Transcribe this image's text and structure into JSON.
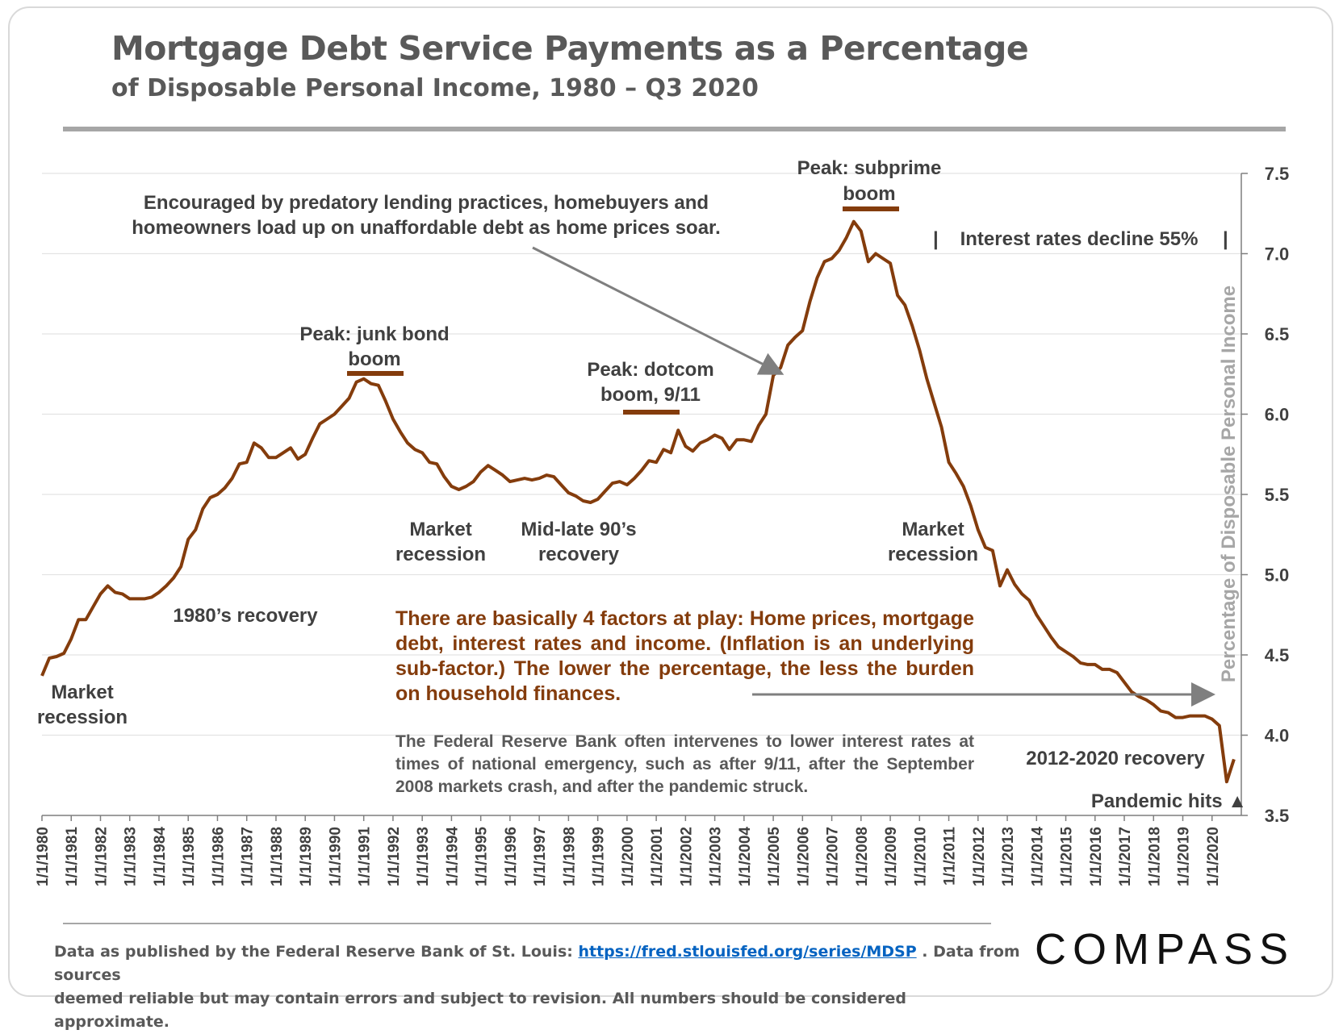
{
  "header": {
    "title": "Mortgage Debt Service Payments as a Percentage",
    "subtitle": "of Disposable Personal Income, 1980 – Q3 2020"
  },
  "chart_data": {
    "type": "line",
    "ylabel": "Percentage of Disposable Personal Income",
    "ylim": [
      3.5,
      7.5
    ],
    "yticks": [
      "3.5",
      "4.0",
      "4.5",
      "5.0",
      "5.5",
      "6.0",
      "6.5",
      "7.0",
      "7.5"
    ],
    "xticks": [
      "1/1/1980",
      "1/1/1981",
      "1/1/1982",
      "1/1/1983",
      "1/1/1984",
      "1/1/1985",
      "1/1/1986",
      "1/1/1987",
      "1/1/1988",
      "1/1/1989",
      "1/1/1990",
      "1/1/1991",
      "1/1/1992",
      "1/1/1993",
      "1/1/1994",
      "1/1/1995",
      "1/1/1996",
      "1/1/1997",
      "1/1/1998",
      "1/1/1999",
      "1/1/2000",
      "1/1/2001",
      "1/1/2002",
      "1/1/2003",
      "1/1/2004",
      "1/1/2005",
      "1/1/2006",
      "1/1/2007",
      "1/1/2008",
      "1/1/2009",
      "1/1/2010",
      "1/1/2011",
      "1/1/2012",
      "1/1/2013",
      "1/1/2014",
      "1/1/2015",
      "1/1/2016",
      "1/1/2017",
      "1/1/2018",
      "1/1/2019",
      "1/1/2020"
    ],
    "series_color": "#843c0c",
    "grid": true,
    "points": [
      [
        1980.0,
        4.37
      ],
      [
        1980.25,
        4.48
      ],
      [
        1980.5,
        4.49
      ],
      [
        1980.75,
        4.51
      ],
      [
        1981.0,
        4.6
      ],
      [
        1981.25,
        4.72
      ],
      [
        1981.5,
        4.72
      ],
      [
        1981.75,
        4.8
      ],
      [
        1982.0,
        4.88
      ],
      [
        1982.25,
        4.93
      ],
      [
        1982.5,
        4.89
      ],
      [
        1982.75,
        4.88
      ],
      [
        1983.0,
        4.85
      ],
      [
        1983.25,
        4.85
      ],
      [
        1983.5,
        4.85
      ],
      [
        1983.75,
        4.86
      ],
      [
        1984.0,
        4.89
      ],
      [
        1984.25,
        4.93
      ],
      [
        1984.5,
        4.98
      ],
      [
        1984.75,
        5.05
      ],
      [
        1985.0,
        5.22
      ],
      [
        1985.25,
        5.28
      ],
      [
        1985.5,
        5.41
      ],
      [
        1985.75,
        5.48
      ],
      [
        1986.0,
        5.5
      ],
      [
        1986.25,
        5.54
      ],
      [
        1986.5,
        5.6
      ],
      [
        1986.75,
        5.69
      ],
      [
        1987.0,
        5.7
      ],
      [
        1987.25,
        5.82
      ],
      [
        1987.5,
        5.79
      ],
      [
        1987.75,
        5.73
      ],
      [
        1988.0,
        5.73
      ],
      [
        1988.25,
        5.76
      ],
      [
        1988.5,
        5.79
      ],
      [
        1988.75,
        5.72
      ],
      [
        1989.0,
        5.75
      ],
      [
        1989.25,
        5.85
      ],
      [
        1989.5,
        5.94
      ],
      [
        1989.75,
        5.97
      ],
      [
        1990.0,
        6.0
      ],
      [
        1990.25,
        6.05
      ],
      [
        1990.5,
        6.1
      ],
      [
        1990.75,
        6.2
      ],
      [
        1991.0,
        6.22
      ],
      [
        1991.25,
        6.19
      ],
      [
        1991.5,
        6.18
      ],
      [
        1991.75,
        6.08
      ],
      [
        1992.0,
        5.97
      ],
      [
        1992.25,
        5.89
      ],
      [
        1992.5,
        5.82
      ],
      [
        1992.75,
        5.78
      ],
      [
        1993.0,
        5.76
      ],
      [
        1993.25,
        5.7
      ],
      [
        1993.5,
        5.69
      ],
      [
        1993.75,
        5.61
      ],
      [
        1994.0,
        5.55
      ],
      [
        1994.25,
        5.53
      ],
      [
        1994.5,
        5.55
      ],
      [
        1994.75,
        5.58
      ],
      [
        1995.0,
        5.64
      ],
      [
        1995.25,
        5.68
      ],
      [
        1995.5,
        5.65
      ],
      [
        1995.75,
        5.62
      ],
      [
        1996.0,
        5.58
      ],
      [
        1996.25,
        5.59
      ],
      [
        1996.5,
        5.6
      ],
      [
        1996.75,
        5.59
      ],
      [
        1997.0,
        5.6
      ],
      [
        1997.25,
        5.62
      ],
      [
        1997.5,
        5.61
      ],
      [
        1997.75,
        5.56
      ],
      [
        1998.0,
        5.51
      ],
      [
        1998.25,
        5.49
      ],
      [
        1998.5,
        5.46
      ],
      [
        1998.75,
        5.45
      ],
      [
        1999.0,
        5.47
      ],
      [
        1999.25,
        5.52
      ],
      [
        1999.5,
        5.57
      ],
      [
        1999.75,
        5.58
      ],
      [
        2000.0,
        5.56
      ],
      [
        2000.25,
        5.6
      ],
      [
        2000.5,
        5.65
      ],
      [
        2000.75,
        5.71
      ],
      [
        2001.0,
        5.7
      ],
      [
        2001.25,
        5.78
      ],
      [
        2001.5,
        5.76
      ],
      [
        2001.75,
        5.9
      ],
      [
        2002.0,
        5.8
      ],
      [
        2002.25,
        5.77
      ],
      [
        2002.5,
        5.82
      ],
      [
        2002.75,
        5.84
      ],
      [
        2003.0,
        5.87
      ],
      [
        2003.25,
        5.85
      ],
      [
        2003.5,
        5.78
      ],
      [
        2003.75,
        5.84
      ],
      [
        2004.0,
        5.84
      ],
      [
        2004.25,
        5.83
      ],
      [
        2004.5,
        5.93
      ],
      [
        2004.75,
        6.0
      ],
      [
        2005.0,
        6.24
      ],
      [
        2005.25,
        6.29
      ],
      [
        2005.5,
        6.43
      ],
      [
        2005.75,
        6.48
      ],
      [
        2006.0,
        6.52
      ],
      [
        2006.25,
        6.7
      ],
      [
        2006.5,
        6.85
      ],
      [
        2006.75,
        6.95
      ],
      [
        2007.0,
        6.97
      ],
      [
        2007.25,
        7.02
      ],
      [
        2007.5,
        7.1
      ],
      [
        2007.75,
        7.2
      ],
      [
        2008.0,
        7.14
      ],
      [
        2008.25,
        6.95
      ],
      [
        2008.5,
        7.0
      ],
      [
        2008.75,
        6.97
      ],
      [
        2009.0,
        6.94
      ],
      [
        2009.25,
        6.74
      ],
      [
        2009.5,
        6.68
      ],
      [
        2009.75,
        6.55
      ],
      [
        2010.0,
        6.4
      ],
      [
        2010.25,
        6.22
      ],
      [
        2010.5,
        6.07
      ],
      [
        2010.75,
        5.92
      ],
      [
        2011.0,
        5.7
      ],
      [
        2011.25,
        5.63
      ],
      [
        2011.5,
        5.55
      ],
      [
        2011.75,
        5.43
      ],
      [
        2012.0,
        5.28
      ],
      [
        2012.25,
        5.17
      ],
      [
        2012.5,
        5.15
      ],
      [
        2012.75,
        4.93
      ],
      [
        2013.0,
        5.03
      ],
      [
        2013.25,
        4.94
      ],
      [
        2013.5,
        4.88
      ],
      [
        2013.75,
        4.84
      ],
      [
        2014.0,
        4.75
      ],
      [
        2014.25,
        4.68
      ],
      [
        2014.5,
        4.61
      ],
      [
        2014.75,
        4.55
      ],
      [
        2015.0,
        4.52
      ],
      [
        2015.25,
        4.49
      ],
      [
        2015.5,
        4.45
      ],
      [
        2015.75,
        4.44
      ],
      [
        2016.0,
        4.44
      ],
      [
        2016.25,
        4.41
      ],
      [
        2016.5,
        4.41
      ],
      [
        2016.75,
        4.39
      ],
      [
        2017.0,
        4.33
      ],
      [
        2017.25,
        4.27
      ],
      [
        2017.5,
        4.24
      ],
      [
        2017.75,
        4.22
      ],
      [
        2018.0,
        4.19
      ],
      [
        2018.25,
        4.15
      ],
      [
        2018.5,
        4.14
      ],
      [
        2018.75,
        4.11
      ],
      [
        2019.0,
        4.11
      ],
      [
        2019.25,
        4.12
      ],
      [
        2019.5,
        4.12
      ],
      [
        2019.75,
        4.12
      ],
      [
        2020.0,
        4.1
      ],
      [
        2020.25,
        4.06
      ],
      [
        2020.5,
        3.71
      ],
      [
        2020.75,
        3.85
      ]
    ]
  },
  "annotations": {
    "predatory_1": "Encouraged by predatory lending practices, homebuyers and",
    "predatory_2": "homeowners load up on unaffordable debt as home prices soar.",
    "subprime_1": "Peak: subprime",
    "subprime_2": "boom",
    "rates_decline": "Interest rates decline 55%",
    "junk_1": "Peak: junk bond",
    "junk_2": "boom",
    "dotcom_1": "Peak: dotcom",
    "dotcom_2": "boom, 9/11",
    "recession_a_1": "Market",
    "recession_a_2": "recession",
    "recovery_90s_1": "Mid-late 90’s",
    "recovery_90s_2": "recovery",
    "recession_b_1": "Market",
    "recession_b_2": "recession",
    "recovery_80s": "1980’s recovery",
    "recession_c_1": "Market",
    "recession_c_2": "recession",
    "recovery_2012": "2012-2020 recovery",
    "pandemic": "Pandemic hits ▲",
    "factors": "There are basically 4 factors at play: Home prices, mortgage debt, interest rates and income. (Inflation is an underlying sub-factor.) The lower the percentage, the less the burden on household finances.",
    "fed": "The Federal Reserve Bank often intervenes to lower interest rates at times of national emergency, such as after 9/11, after the September 2008 markets crash, and after the pandemic struck."
  },
  "footer": {
    "source_prefix": "Data as published by the Federal Reserve Bank of St. Louis:",
    "source_link": "https://fred.stlouisfed.org/series/MDSP",
    "source_suffix": ". Data from sources",
    "source_line2": "deemed reliable but may contain errors and subject to revision. All numbers should be considered approximate.",
    "logo": "COMPASS"
  }
}
